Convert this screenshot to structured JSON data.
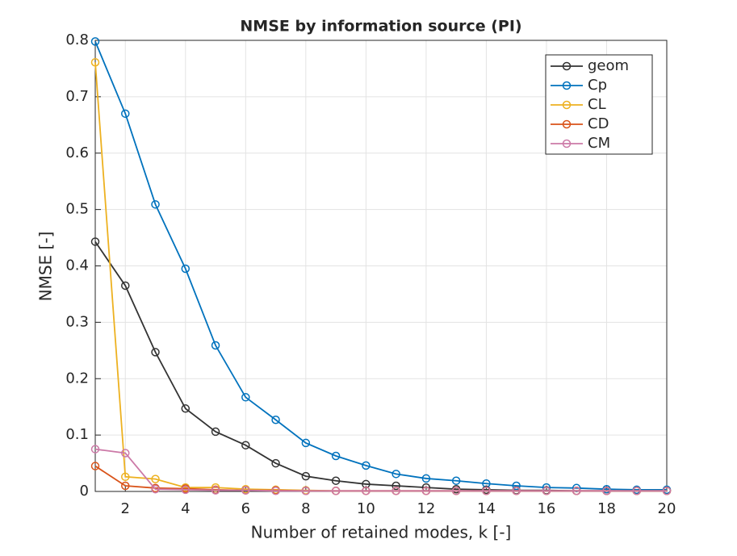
{
  "chart_data": {
    "type": "line",
    "title": "NMSE by information source (PI)",
    "x_label": "Number of retained modes, k [-]",
    "y_label": "NMSE [-]",
    "x": [
      1,
      2,
      3,
      4,
      5,
      6,
      7,
      8,
      9,
      10,
      11,
      12,
      13,
      14,
      15,
      16,
      17,
      18,
      19,
      20
    ],
    "series": [
      {
        "name": "geom",
        "color": "#333333",
        "values": [
          0.443,
          0.365,
          0.247,
          0.147,
          0.106,
          0.082,
          0.05,
          0.027,
          0.019,
          0.013,
          0.01,
          0.007,
          0.004,
          0.003,
          0.002,
          0.002,
          0.001,
          0.001,
          0.001,
          0.001
        ]
      },
      {
        "name": "Cp",
        "color": "#0072bd",
        "values": [
          0.798,
          0.67,
          0.509,
          0.395,
          0.259,
          0.167,
          0.127,
          0.086,
          0.063,
          0.046,
          0.031,
          0.023,
          0.019,
          0.014,
          0.01,
          0.007,
          0.006,
          0.004,
          0.003,
          0.003
        ]
      },
      {
        "name": "CL",
        "color": "#edb120",
        "values": [
          0.761,
          0.026,
          0.022,
          0.007,
          0.007,
          0.004,
          0.003,
          0.002,
          0.001,
          0.001,
          0.001,
          0.001,
          0.001,
          0.001,
          0.001,
          0.001,
          0.001,
          0.001,
          0.001,
          0.001
        ]
      },
      {
        "name": "CD",
        "color": "#d95319",
        "values": [
          0.045,
          0.01,
          0.006,
          0.005,
          0.003,
          0.002,
          0.002,
          0.001,
          0.001,
          0.001,
          0.001,
          0.001,
          0.001,
          0.001,
          0.001,
          0.001,
          0.001,
          0.001,
          0.001,
          0.001
        ]
      },
      {
        "name": "CM",
        "color": "#cc79a7",
        "values": [
          0.075,
          0.068,
          0.004,
          0.003,
          0.002,
          0.002,
          0.001,
          0.001,
          0.001,
          0.001,
          0.001,
          0.001,
          0.001,
          0.001,
          0.001,
          0.001,
          0.001,
          0.001,
          0.001,
          0.001
        ]
      }
    ],
    "xlim": [
      1,
      20
    ],
    "xticks": [
      2,
      4,
      6,
      8,
      10,
      12,
      14,
      16,
      18,
      20
    ],
    "ylim": [
      0,
      0.8
    ],
    "yticks": [
      0,
      0.1,
      0.2,
      0.3,
      0.4,
      0.5,
      0.6,
      0.7,
      0.8
    ],
    "grid": true,
    "legend": "top-right"
  }
}
